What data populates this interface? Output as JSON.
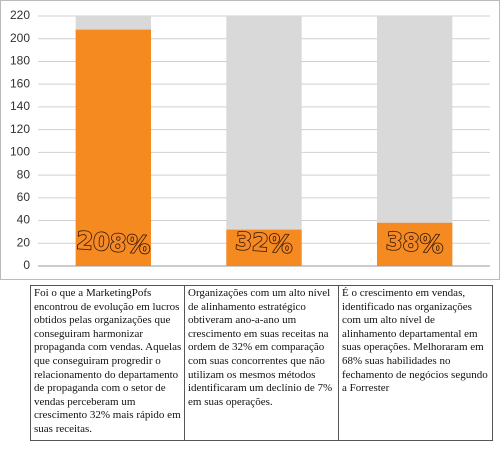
{
  "chart_data": {
    "type": "bar",
    "categories": [
      null,
      null,
      null
    ],
    "values": [
      208,
      32,
      38
    ],
    "value_labels": [
      "208%",
      "32%",
      "38%"
    ],
    "color": "#f58a20",
    "background_color": "#d9d9d9",
    "ylim": [
      0,
      220
    ],
    "yticks": [
      0,
      20,
      40,
      60,
      80,
      100,
      120,
      140,
      160,
      180,
      200,
      220
    ],
    "grid": true
  },
  "table": {
    "rows": [
      [
        "Foi o que a MarketingPofs encontrou de evolução em lucros obtidos pelas organizações que conseguiram harmonizar propaganda com vendas. Aquelas que conseguiram progredir o relacionamento do departamento de propaganda com o setor de vendas perceberam um crescimento 32% mais rápido em suas receitas.",
        "Organizações com um alto nível de alinhamento estratégico obtiveram ano-a-ano um crescimento em suas receitas na ordem de 32% em comparação com suas concorrentes que não utilizam os mesmos métodos identificaram um declínio de 7% em suas operações.",
        "É o crescimento em vendas, identificado nas organizações com um alto nível de alinhamento departamental em suas operações. Melhoraram em 68% suas habilidades no fechamento de negócios segundo a Forrester"
      ]
    ]
  }
}
